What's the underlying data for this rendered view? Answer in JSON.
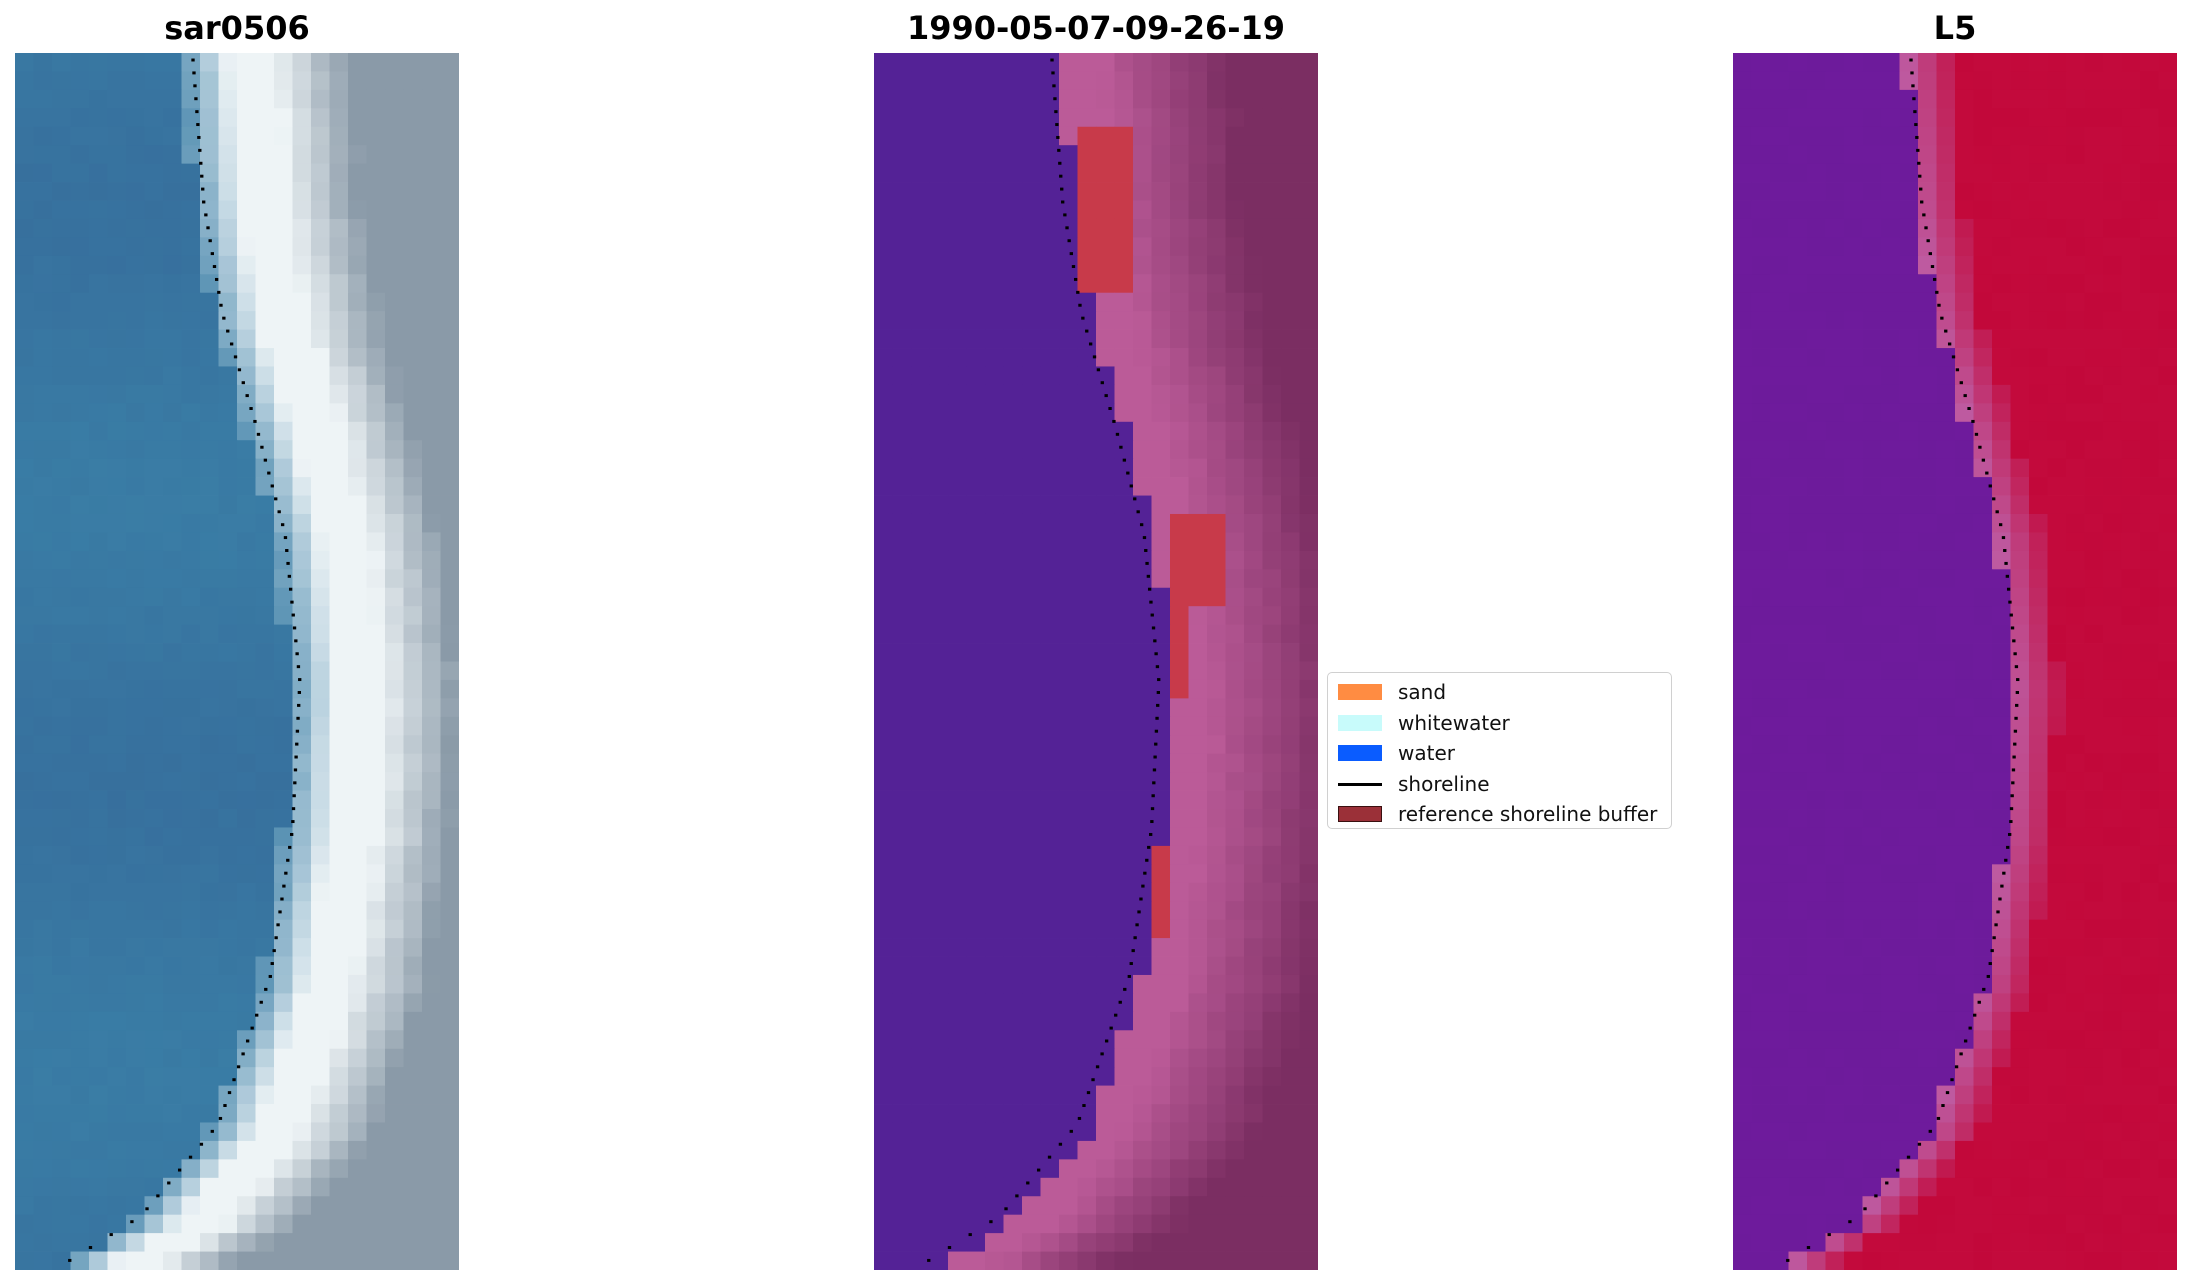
{
  "panels": [
    {
      "title": "sar0506",
      "kind": "rgb"
    },
    {
      "title": "1990-05-07-09-26-19",
      "kind": "classified"
    },
    {
      "title": "L5",
      "kind": "index"
    }
  ],
  "legend": {
    "items": [
      {
        "label": "sand",
        "color": "#ff8c42",
        "type": "patch"
      },
      {
        "label": "whitewater",
        "color": "#c8fbfb",
        "type": "patch"
      },
      {
        "label": "water",
        "color": "#0a5cff",
        "type": "patch"
      },
      {
        "label": "shoreline",
        "color": "#000000",
        "type": "line"
      },
      {
        "label": "reference shoreline buffer",
        "color": "#9b3038",
        "type": "patch"
      }
    ]
  },
  "colors": {
    "rgb_water": "#3a7ea6",
    "rgb_surf": "#eef4f6",
    "rgb_land": "#8a9aa8",
    "class_water": "#542296",
    "class_sand": "#bb5b98",
    "class_land": "#7b2e62",
    "class_buffer": "#c83a4a",
    "index_water": "#6a1a9a",
    "index_land": "#c2083a",
    "shoreline": "#000000"
  }
}
